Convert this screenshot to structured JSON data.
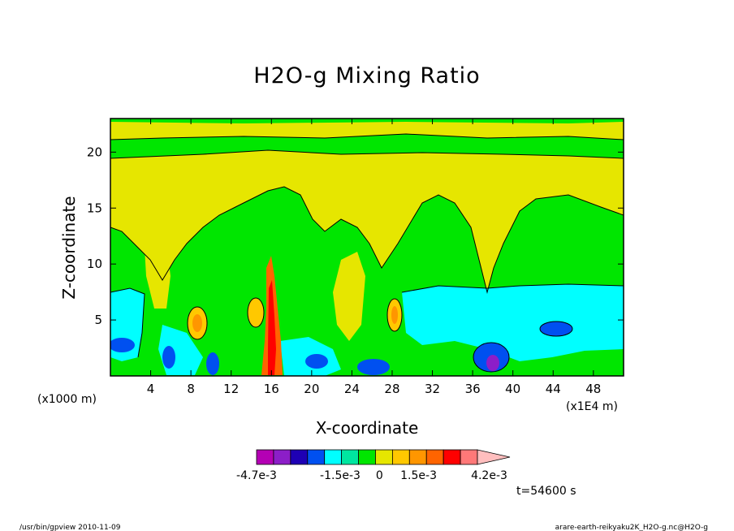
{
  "chart_data": {
    "type": "heatmap",
    "title": "H2O-g Mixing Ratio",
    "xlabel": "X-coordinate",
    "ylabel": "Z-coordinate",
    "x_unit": "(x1000 m)",
    "x_scale_note": "(x1E4 m)",
    "xlim": [
      0,
      51
    ],
    "ylim": [
      0,
      23
    ],
    "x_ticks": [
      4,
      8,
      12,
      16,
      20,
      24,
      28,
      32,
      36,
      40,
      44,
      48
    ],
    "y_ticks": [
      5,
      10,
      15,
      20
    ],
    "colorbar": {
      "levels": [
        -0.0047,
        -0.004,
        -0.0033,
        -0.0026,
        -0.0019,
        -0.0012,
        -0.0005,
        0.0002,
        0.0009,
        0.0016,
        0.0023,
        0.003,
        0.0037,
        0.0044
      ],
      "tick_labels": [
        "-4.7e-3",
        "-1.5e-3",
        "0",
        "1.5e-3",
        "4.2e-3"
      ],
      "colors": [
        "#b400b4",
        "#8c1ec8",
        "#1e00b4",
        "#0050f0",
        "#00ffff",
        "#00e6a0",
        "#00e600",
        "#e6e600",
        "#ffc800",
        "#ff9600",
        "#ff6400",
        "#ff0000",
        "#ff7878",
        "#ffbebe"
      ],
      "extend": "max"
    },
    "grid": false,
    "legend": "colorbar-bottom"
  },
  "annotations": {
    "time": "t=54600 s",
    "footer_left": "/usr/bin/gpview  2010-11-09",
    "footer_right": "arare-earth-reikyaku2K_H2O-g.nc@H2O-g"
  }
}
